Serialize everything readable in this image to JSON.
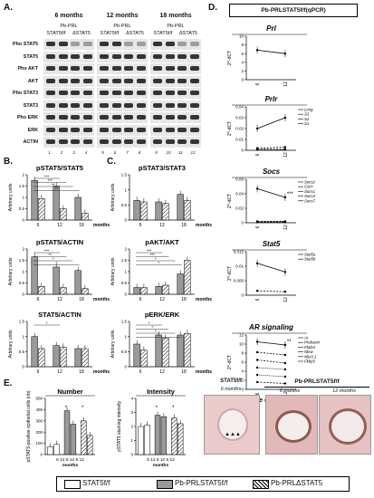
{
  "panel_labels": {
    "a": "A.",
    "b": "B.",
    "c": "C.",
    "d": "D.",
    "e": "E."
  },
  "blot": {
    "groups": [
      {
        "age": "6 months",
        "title": "Pb-PRL",
        "cols": [
          "STAT5f/f",
          "ΔSTAT5"
        ]
      },
      {
        "age": "12 months",
        "title": "Pb-PRL",
        "cols": [
          "STAT5f/f",
          "ΔSTAT5"
        ]
      },
      {
        "age": "18 months",
        "title": "Pb-PRL",
        "cols": [
          "STAT5f/f",
          "ΔSTAT5"
        ]
      }
    ],
    "rows": [
      "Pho STAT5",
      "STAT5",
      "Pho AKT",
      "AKT",
      "Pho STAT3",
      "STAT3",
      "Pho ERK",
      "ERK",
      "ACTIN"
    ],
    "lanes": [
      "1",
      "2",
      "3",
      "4",
      "5",
      "6",
      "7",
      "8",
      "9",
      "10",
      "11",
      "12"
    ]
  },
  "d_header": "Pb-PRLSTAT5f/f(qPCR)",
  "e_labels": {
    "number_title": "Number",
    "intensity_title": "Intensity",
    "number_ylabel": "pSTAT5-positive epithelial cells (nb)",
    "intensity_ylabel": "pSTAT5 staining intensity",
    "xaxis": "6 12   6 12   6 12",
    "months": "months"
  },
  "micro": {
    "header1": "STAT5f/f",
    "header2": "Pb-PRLSTAT5f/f",
    "img1": "6 months",
    "img2": "6 months",
    "img3": "12 months"
  },
  "legend": [
    "STAT5f/f",
    "Pb-PRLSTAT5f/f",
    "Pb-PRLΔSTAT5"
  ],
  "chart_data": [
    {
      "id": "b1",
      "type": "bar",
      "title": "pSTAT5/STAT5",
      "ylabel": "Arbitrary units",
      "ylim": [
        0,
        2.0
      ],
      "yticks": [
        0,
        0.5,
        1.0,
        1.5,
        2.0
      ],
      "categories": [
        "6",
        "12",
        "18"
      ],
      "xlabel_suffix": "months",
      "series": [
        {
          "values": [
            1.75,
            1.5,
            1.0
          ]
        },
        {
          "values": [
            0.95,
            0.5,
            0.3
          ]
        }
      ],
      "annotations": [
        "***",
        "***",
        "**",
        "**"
      ]
    },
    {
      "id": "b2",
      "type": "bar",
      "title": "pSTAT5/ACTIN",
      "ylabel": "Arbitrary units",
      "ylim": [
        0,
        2.0
      ],
      "yticks": [
        0,
        0.5,
        1.0,
        1.5,
        2.0
      ],
      "categories": [
        "6",
        "12",
        "18"
      ],
      "xlabel_suffix": "months",
      "series": [
        {
          "values": [
            1.65,
            1.2,
            1.05
          ]
        },
        {
          "values": [
            0.35,
            0.3,
            0.25
          ]
        }
      ],
      "annotations": [
        "***",
        "**",
        "*",
        "*"
      ]
    },
    {
      "id": "b3",
      "type": "bar",
      "title": "STAT5/ACTIN",
      "ylabel": "Arbitrary units",
      "ylim": [
        0,
        1.5
      ],
      "yticks": [
        0,
        0.5,
        1.0,
        1.5
      ],
      "categories": [
        "6",
        "12",
        "18"
      ],
      "xlabel_suffix": "months",
      "series": [
        {
          "values": [
            1.0,
            0.7,
            0.6
          ]
        },
        {
          "values": [
            0.6,
            0.65,
            0.6
          ]
        }
      ],
      "annotations": [
        "*"
      ]
    },
    {
      "id": "c1",
      "type": "bar",
      "title": "pSTAT3/STAT3",
      "ylabel": "Arbitrary units",
      "ylim": [
        0,
        1.5
      ],
      "yticks": [
        0,
        0.5,
        1.0,
        1.5
      ],
      "categories": [
        "6",
        "12",
        "18"
      ],
      "xlabel_suffix": "months",
      "series": [
        {
          "values": [
            0.65,
            0.6,
            0.85
          ]
        },
        {
          "values": [
            0.6,
            0.55,
            0.65
          ]
        }
      ],
      "annotations": []
    },
    {
      "id": "c2",
      "type": "bar",
      "title": "pAKT/AKT",
      "ylabel": "Arbitrary units",
      "ylim": [
        0,
        2.0
      ],
      "yticks": [
        0,
        0.5,
        1.0,
        1.5,
        2.0
      ],
      "categories": [
        "6",
        "12",
        "18"
      ],
      "xlabel_suffix": "months",
      "series": [
        {
          "values": [
            0.3,
            0.35,
            0.9
          ]
        },
        {
          "values": [
            0.3,
            0.4,
            1.5
          ]
        }
      ],
      "annotations": [
        "***",
        "***",
        "*",
        "*"
      ]
    },
    {
      "id": "c3",
      "type": "bar",
      "title": "pERK/ERK",
      "ylabel": "Arbitrary units",
      "ylim": [
        0,
        1.5
      ],
      "yticks": [
        0,
        0.5,
        1.0,
        1.5
      ],
      "categories": [
        "6",
        "12",
        "18"
      ],
      "xlabel_suffix": "months",
      "series": [
        {
          "values": [
            0.75,
            1.05,
            1.05
          ]
        },
        {
          "values": [
            0.55,
            0.95,
            1.1
          ]
        }
      ],
      "annotations": [
        "*",
        "*",
        "*",
        "*"
      ]
    },
    {
      "id": "d1",
      "type": "line",
      "title": "Prl",
      "ylabel": "2^-dCT",
      "x": [
        "6",
        "12"
      ],
      "ylim": [
        0,
        10
      ],
      "yticks": [
        0,
        2,
        4,
        6,
        8,
        10
      ],
      "series": [
        {
          "name": "",
          "values": [
            6.8,
            6.0
          ],
          "style": "solid"
        }
      ],
      "legend": [],
      "annotations": []
    },
    {
      "id": "d2",
      "type": "line",
      "title": "Prlr",
      "ylabel": "2^-dCT",
      "x": [
        "6",
        "12"
      ],
      "ylim": [
        0,
        0.04
      ],
      "yticks": [
        0,
        0.01,
        0.02,
        0.03,
        0.04
      ],
      "series": [
        {
          "name": "Long",
          "values": [
            0.02,
            0.03
          ],
          "style": "solid"
        },
        {
          "name": "S3",
          "values": [
            0.002,
            0.003
          ],
          "style": "dash"
        },
        {
          "name": "S2",
          "values": [
            0.001,
            0.001
          ],
          "style": "dash"
        },
        {
          "name": "S1",
          "values": [
            0.0005,
            0.0005
          ],
          "style": "dot"
        }
      ],
      "legend": [
        "Long",
        "S3",
        "S2",
        "S1"
      ],
      "annotations": []
    },
    {
      "id": "d3",
      "type": "line",
      "title": "Socs",
      "ylabel": "2^-dCT",
      "x": [
        "6",
        "12"
      ],
      "ylim": [
        0,
        0.06
      ],
      "yticks": [
        0,
        0.02,
        0.04,
        0.06
      ],
      "series": [
        {
          "name": "Socs2",
          "values": [
            0.047,
            0.035
          ],
          "style": "solid"
        },
        {
          "name": "CisH",
          "values": [
            0.002,
            0.002
          ],
          "style": "dash"
        },
        {
          "name": "Socs1",
          "values": [
            0.001,
            0.001
          ],
          "style": "dash"
        },
        {
          "name": "Socs3",
          "values": [
            0.0015,
            0.0015
          ],
          "style": "dot"
        },
        {
          "name": "Socs7",
          "values": [
            0.0008,
            0.0008
          ],
          "style": "dot"
        }
      ],
      "legend": [
        "Socs2",
        "CisH",
        "Socs1",
        "Socs3",
        "Socs7"
      ],
      "annotations": [
        "***"
      ]
    },
    {
      "id": "d4",
      "type": "line",
      "title": "Stat5",
      "ylabel": "2^-dCT",
      "x": [
        "6",
        "12"
      ],
      "ylim": [
        0,
        0.015
      ],
      "yticks": [
        0,
        0.005,
        0.01,
        0.015
      ],
      "series": [
        {
          "name": "Stat5a",
          "values": [
            0.011,
            0.008
          ],
          "style": "solid"
        },
        {
          "name": "Stat5b",
          "values": [
            0.0015,
            0.0012
          ],
          "style": "dash"
        }
      ],
      "legend": [
        "Stat5a",
        "Stat5b"
      ],
      "annotations": []
    },
    {
      "id": "d5",
      "type": "line",
      "title": "AR signaling",
      "ylabel": "2^-dCT",
      "x": [
        "6",
        "12"
      ],
      "ylim": [
        0,
        12
      ],
      "yticks": [
        0,
        2,
        4,
        6,
        8,
        10,
        12
      ],
      "series": [
        {
          "name": "Ar",
          "values": [
            10.5,
            9.8
          ],
          "style": "solid"
        },
        {
          "name": "Probasin",
          "values": [
            8.2,
            7.6
          ],
          "style": "dash"
        },
        {
          "name": "Fkpb4",
          "values": [
            6.5,
            5.8
          ],
          "style": "dash"
        },
        {
          "name": "Nkrw",
          "values": [
            4.8,
            4.4
          ],
          "style": "dot"
        },
        {
          "name": "Nkx3.1",
          "values": [
            3.2,
            2.8
          ],
          "style": "dot"
        },
        {
          "name": "Fkbp5",
          "values": [
            1.6,
            1.3
          ],
          "style": "dash"
        }
      ],
      "legend": [
        "Ar",
        "Probasin",
        "Fkpb4",
        "Nkrw",
        "Nkx3.1",
        "Fkbp5"
      ],
      "annotations": [
        "**"
      ]
    },
    {
      "id": "e1",
      "type": "bar",
      "title": "Number",
      "ylabel": "pSTAT5-positive epithelial cells (nb)",
      "ylim": [
        0,
        500
      ],
      "yticks": [
        0,
        100,
        200,
        300,
        400,
        500
      ],
      "groups": [
        {
          "series": "STAT5f/f",
          "values": [
            70,
            90
          ]
        },
        {
          "series": "Pb-PRLSTAT5f/f",
          "values": [
            390,
            270
          ]
        },
        {
          "series": "Pb-PRLΔSTAT5",
          "values": [
            300,
            170
          ]
        }
      ],
      "annotations": [
        "*",
        "*"
      ]
    },
    {
      "id": "e2",
      "type": "bar",
      "title": "Intensity",
      "ylabel": "pSTAT5 staining intensity",
      "ylim": [
        0,
        4
      ],
      "yticks": [
        0,
        1,
        2,
        3,
        4
      ],
      "groups": [
        {
          "series": "STAT5f/f",
          "values": [
            2.0,
            2.1
          ]
        },
        {
          "series": "Pb-PRLSTAT5f/f",
          "values": [
            2.8,
            2.7
          ]
        },
        {
          "series": "Pb-PRLΔSTAT5",
          "values": [
            2.6,
            2.2
          ]
        }
      ],
      "annotations": [
        "*",
        "*"
      ]
    }
  ]
}
